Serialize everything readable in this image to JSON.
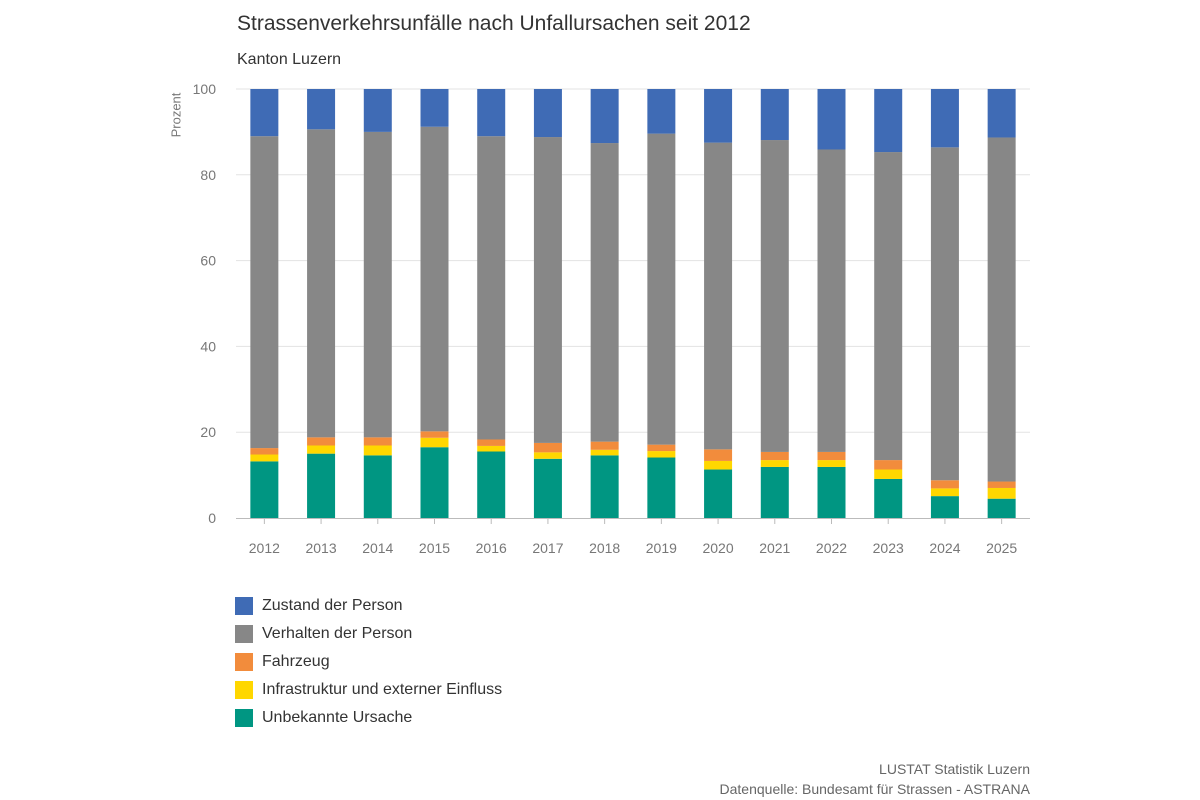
{
  "header": {
    "title": "Strassenverkehrsunfälle nach Unfallursachen seit 2012",
    "subtitle": "Kanton Luzern"
  },
  "footer": {
    "org": "LUSTAT Statistik Luzern",
    "source": "Datenquelle: Bundesamt für Strassen - ASTRANA"
  },
  "chart_data": {
    "type": "bar",
    "stacked": true,
    "title": "Strassenverkehrsunfälle nach Unfallursachen seit 2012",
    "subtitle": "Kanton Luzern",
    "xlabel": "",
    "ylabel": "Prozent",
    "ylim": [
      0,
      100
    ],
    "yticks": [
      0,
      20,
      40,
      60,
      80,
      100
    ],
    "grid": true,
    "legend_position": "bottom-left",
    "categories": [
      "2012",
      "2013",
      "2014",
      "2015",
      "2016",
      "2017",
      "2018",
      "2019",
      "2020",
      "2021",
      "2022",
      "2023",
      "2024",
      "2025"
    ],
    "series": [
      {
        "name": "Unbekannte Ursache",
        "color": "#009682",
        "values": [
          13.2,
          15.0,
          14.6,
          16.5,
          15.5,
          13.8,
          14.6,
          14.1,
          11.3,
          11.9,
          11.9,
          9.1,
          5.1,
          4.5
        ]
      },
      {
        "name": "Infrastruktur und externer Einfluss",
        "color": "#ffd700",
        "values": [
          1.6,
          1.9,
          2.3,
          2.2,
          1.3,
          1.5,
          1.3,
          1.5,
          2.0,
          1.6,
          1.6,
          2.2,
          1.8,
          2.5
        ]
      },
      {
        "name": "Fahrzeug",
        "color": "#f28c3c",
        "values": [
          1.5,
          1.9,
          1.9,
          1.5,
          1.5,
          2.2,
          1.9,
          1.5,
          2.7,
          1.9,
          1.9,
          2.2,
          1.9,
          1.5
        ]
      },
      {
        "name": "Verhalten der Person",
        "color": "#878787",
        "values": [
          72.7,
          71.8,
          71.2,
          71.0,
          70.7,
          71.3,
          69.6,
          72.5,
          71.5,
          72.7,
          70.5,
          71.8,
          77.6,
          80.2
        ]
      },
      {
        "name": "Zustand der Person",
        "color": "#3f6bb5",
        "values": [
          11.0,
          9.4,
          10.0,
          8.8,
          11.0,
          11.2,
          12.6,
          10.4,
          12.5,
          11.9,
          14.1,
          14.7,
          13.6,
          11.3
        ]
      }
    ],
    "legend_order": [
      "Zustand der Person",
      "Verhalten der Person",
      "Fahrzeug",
      "Infrastruktur und externer Einfluss",
      "Unbekannte Ursache"
    ]
  }
}
